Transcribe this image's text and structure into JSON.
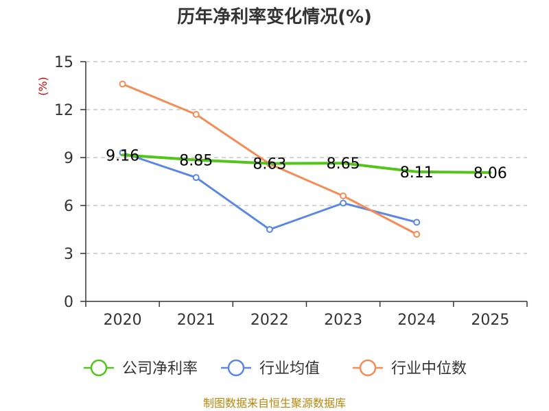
{
  "chart_data": {
    "type": "line",
    "title": "历年净利率变化情况(%)",
    "ylabel": "(%)",
    "xlabel": "",
    "categories": [
      "2020",
      "2021",
      "2022",
      "2023",
      "2024",
      "2025"
    ],
    "ylim": [
      0,
      15
    ],
    "yticks": [
      0,
      3,
      6,
      9,
      12,
      15
    ],
    "grid": true,
    "legend_position": "bottom",
    "series": [
      {
        "name": "公司净利率",
        "color": "#52c41a",
        "values": [
          9.16,
          8.85,
          8.63,
          8.65,
          8.11,
          8.06
        ],
        "labels": [
          "9.16",
          "8.85",
          "8.63",
          "8.65",
          "8.11",
          "8.06"
        ],
        "show_markers": false
      },
      {
        "name": "行业均值",
        "color": "#5b86e5",
        "values": [
          9.3,
          7.75,
          4.5,
          6.15,
          4.95,
          null
        ],
        "show_markers": true
      },
      {
        "name": "行业中位数",
        "color": "#f58c56",
        "values": [
          13.6,
          11.7,
          8.6,
          6.6,
          4.2,
          null
        ],
        "show_markers": true
      }
    ]
  },
  "source": "制图数据来自恒生聚源数据库"
}
